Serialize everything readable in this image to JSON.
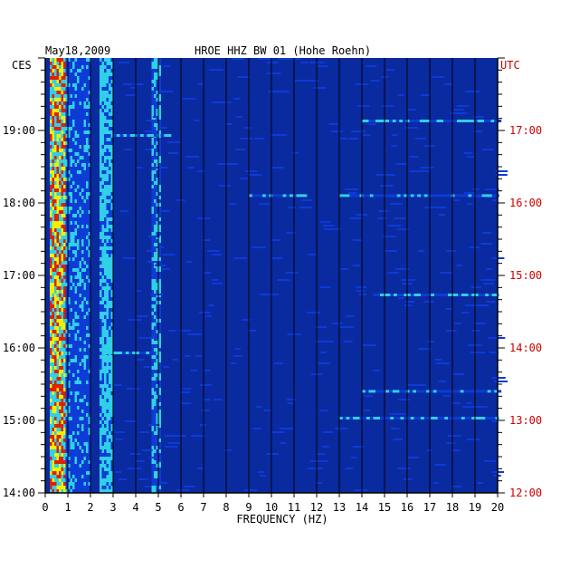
{
  "chart_data": {
    "type": "heatmap",
    "date": "May18,2009",
    "title": "HROE HHZ BW 01 (Hohe Roehn)",
    "xlabel": "FREQUENCY (HZ)",
    "left_timezone": "CES",
    "right_timezone": "UTC",
    "xlim": [
      0,
      20
    ],
    "x_ticks": [
      "0",
      "1",
      "2",
      "3",
      "4",
      "5",
      "6",
      "7",
      "8",
      "9",
      "10",
      "11",
      "12",
      "13",
      "14",
      "15",
      "16",
      "17",
      "18",
      "19",
      "20"
    ],
    "ylim_hours": [
      14,
      20
    ],
    "left_ticks": [
      {
        "hour": 19,
        "label": "19:00"
      },
      {
        "hour": 18,
        "label": "18:00"
      },
      {
        "hour": 17,
        "label": "17:00"
      },
      {
        "hour": 16,
        "label": "16:00"
      },
      {
        "hour": 15,
        "label": "15:00"
      },
      {
        "hour": 14,
        "label": "14:00"
      }
    ],
    "right_ticks": [
      {
        "hour": 19,
        "label": "17:00"
      },
      {
        "hour": 18,
        "label": "16:00"
      },
      {
        "hour": 17,
        "label": "15:00"
      },
      {
        "hour": 16,
        "label": "14:00"
      },
      {
        "hour": 15,
        "label": "13:00"
      },
      {
        "hour": 14,
        "label": "12:00"
      }
    ],
    "colors": {
      "background": "#0a2aa0",
      "low": "#0d3bd6",
      "mid": "#2fd0e8",
      "high": "#f0f000",
      "peak": "#e02000",
      "grid": "#000000",
      "right_label": "#cc0000"
    },
    "energy_bands_hz": [
      {
        "from": 0.2,
        "to": 0.9,
        "level": 0.95
      },
      {
        "from": 0.9,
        "to": 2.0,
        "level": 0.45
      },
      {
        "from": 2.4,
        "to": 3.0,
        "level": 0.6
      },
      {
        "from": 4.7,
        "to": 5.0,
        "level": 0.5
      }
    ],
    "event_lines": [
      {
        "hour": 19.15,
        "from": 14.0,
        "to": 20.0,
        "level": 0.55
      },
      {
        "hour": 18.95,
        "from": 3.0,
        "to": 5.5,
        "level": 0.5
      },
      {
        "hour": 18.12,
        "from": 9.0,
        "to": 11.5,
        "level": 0.55
      },
      {
        "hour": 18.12,
        "from": 13.0,
        "to": 20.0,
        "level": 0.4
      },
      {
        "hour": 16.75,
        "from": 14.5,
        "to": 20.0,
        "level": 0.5
      },
      {
        "hour": 15.95,
        "from": 2.5,
        "to": 5.0,
        "level": 0.55
      },
      {
        "hour": 15.42,
        "from": 14.0,
        "to": 20.0,
        "level": 0.45
      },
      {
        "hour": 15.05,
        "from": 13.0,
        "to": 20.0,
        "level": 0.5
      }
    ]
  }
}
